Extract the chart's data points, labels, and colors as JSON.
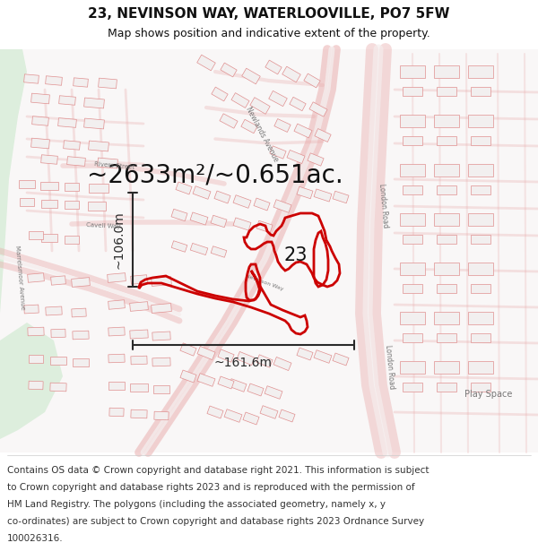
{
  "title": "23, NEVINSON WAY, WATERLOOVILLE, PO7 5FW",
  "subtitle": "Map shows position and indicative extent of the property.",
  "area_text": "~2633m²/~0.651ac.",
  "label_23": "23",
  "dim_h": "~106.0m",
  "dim_w": "~161.6m",
  "play_space": "Play Space",
  "footer_lines": [
    "Contains OS data © Crown copyright and database right 2021. This information is subject",
    "to Crown copyright and database rights 2023 and is reproduced with the permission of",
    "HM Land Registry. The polygons (including the associated geometry, namely x, y",
    "co-ordinates) are subject to Crown copyright and database rights 2023 Ordnance Survey",
    "100026316."
  ],
  "bg_color": "#ffffff",
  "green_color": "#ddeedd",
  "road_fill": "#f5eded",
  "road_stroke": "#e8a8a8",
  "bldg_fill": "#f2efef",
  "bldg_stroke": "#e09090",
  "prop_color": "#cc0000",
  "dim_color": "#2a2a2a",
  "text_color": "#333333",
  "label_color": "#777777",
  "title_fs": 11,
  "subtitle_fs": 9,
  "area_fs": 20,
  "num_fs": 15,
  "dim_fs": 10,
  "footer_fs": 7.5,
  "street_fs": 5.5,
  "play_fs": 7,
  "fig_w": 6.0,
  "fig_h": 6.25,
  "dpi": 100
}
